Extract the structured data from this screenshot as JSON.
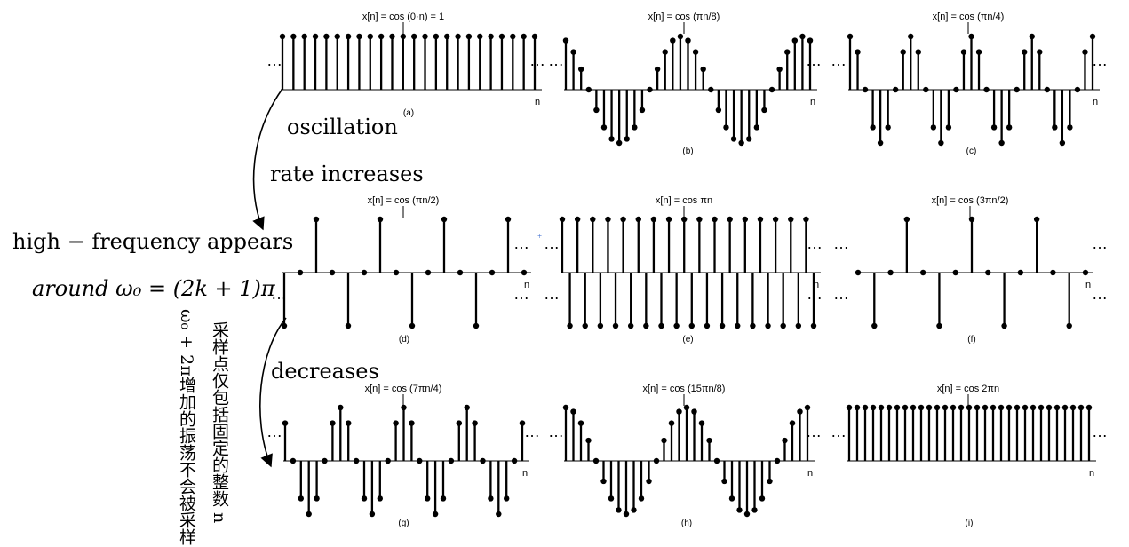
{
  "annotations": {
    "oscillation": "oscillation",
    "rate_increases": "rate increases",
    "high_frequency": "high − frequency appears",
    "around": "around ω₀ = (2k + 1)π",
    "decreases": "decreases",
    "note_omega": "ω₀ + 2π增加的振荡不会被采样",
    "note_samples": "采样点仅包括固定的整数 n"
  },
  "axis_label": "n",
  "ellipsis": "…",
  "panels": [
    {
      "id": "a",
      "title": "x[n] = cos (0·n) = 1",
      "label": "(a)",
      "omega_over_pi": 0,
      "phase_shift": 0
    },
    {
      "id": "b",
      "title": "x[n] = cos (πn/8)",
      "label": "(b)",
      "omega_over_pi": 0.125,
      "phase_shift": 0
    },
    {
      "id": "c",
      "title": "x[n] = cos (πn/4)",
      "label": "(c)",
      "omega_over_pi": 0.25,
      "phase_shift": 0
    },
    {
      "id": "d",
      "title": "x[n] = cos (πn/2)",
      "label": "(d)",
      "omega_over_pi": 0.5,
      "phase_shift": 1
    },
    {
      "id": "e",
      "title": "x[n] = cos πn",
      "label": "(e)",
      "omega_over_pi": 1,
      "phase_shift": 0
    },
    {
      "id": "f",
      "title": "x[n] = cos (3πn/2)",
      "label": "(f)",
      "omega_over_pi": 1.5,
      "phase_shift": 0
    },
    {
      "id": "g",
      "title": "x[n] = cos (7πn/4)",
      "label": "(g)",
      "omega_over_pi": 1.75,
      "phase_shift": 0
    },
    {
      "id": "h",
      "title": "x[n] = cos (15πn/8)",
      "label": "(h)",
      "omega_over_pi": 1.875,
      "phase_shift": 0
    },
    {
      "id": "i",
      "title": "x[n] = cos 2πn",
      "label": "(i)",
      "omega_over_pi": 2,
      "phase_shift": 0
    }
  ]
}
